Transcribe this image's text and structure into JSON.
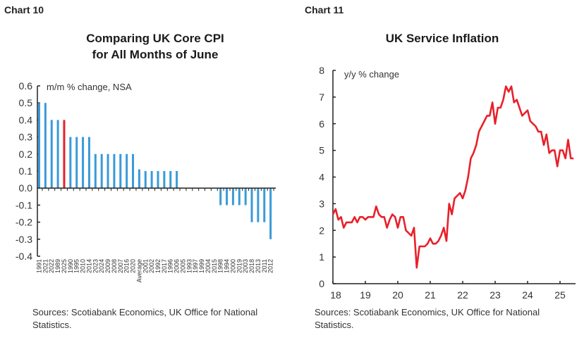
{
  "charts_header": [
    "Chart 10",
    "Chart 11"
  ],
  "chart_data": [
    {
      "type": "bar",
      "label": "Chart 10",
      "title": "Comparing UK Core CPI for All Months of June",
      "title_lines": [
        "Comparing UK Core CPI",
        "for All Months of June"
      ],
      "ylabel": "m/m % change, NSA",
      "ylim": [
        -0.4,
        0.6
      ],
      "yticks": [
        "0.6",
        "0.5",
        "0.4",
        "0.3",
        "0.2",
        "0.1",
        "0.0",
        "-0.1",
        "-0.2",
        "-0.3",
        "-0.4"
      ],
      "categories": [
        "1991",
        "2021",
        "2022",
        "1989",
        "2025",
        "1990",
        "1995",
        "2010",
        "2014",
        "2023",
        "2024",
        "2009",
        "2008",
        "2007",
        "2016",
        "2020",
        "Average",
        "2001",
        "2002",
        "1992",
        "2017",
        "1996",
        "2006",
        "2005",
        "1993",
        "1997",
        "1999",
        "2004",
        "2015",
        "1998",
        "1994",
        "2000",
        "2019",
        "2003",
        "2018",
        "2013",
        "2011",
        "2012"
      ],
      "values": [
        0.5,
        0.5,
        0.4,
        0.4,
        0.4,
        0.3,
        0.3,
        0.3,
        0.3,
        0.2,
        0.2,
        0.2,
        0.2,
        0.2,
        0.2,
        0.2,
        0.11,
        0.1,
        0.1,
        0.1,
        0.1,
        0.1,
        0.1,
        0,
        0,
        0,
        0,
        0,
        0,
        -0.1,
        -0.1,
        -0.1,
        -0.1,
        -0.1,
        -0.2,
        -0.2,
        -0.2,
        -0.3
      ],
      "highlight": "2025",
      "colors": {
        "bar": "#3a9ad9",
        "highlight": "#e8202a"
      },
      "source": "Sources: Scotiabank Economics, UK Office for National Statistics."
    },
    {
      "type": "line",
      "label": "Chart 11",
      "title": "UK Service Inflation",
      "ylabel": "y/y % change",
      "ylim": [
        0,
        8
      ],
      "yticks": [
        "0",
        "1",
        "2",
        "3",
        "4",
        "5",
        "6",
        "7",
        "8"
      ],
      "xticks": [
        "18",
        "19",
        "20",
        "21",
        "22",
        "23",
        "24",
        "25"
      ],
      "x_start": "2018-01",
      "frequency": "monthly",
      "values": [
        2.6,
        2.8,
        2.4,
        2.5,
        2.1,
        2.3,
        2.3,
        2.3,
        2.5,
        2.3,
        2.5,
        2.5,
        2.4,
        2.5,
        2.5,
        2.5,
        2.9,
        2.6,
        2.5,
        2.5,
        2.1,
        2.4,
        2.6,
        2.5,
        2.1,
        2.5,
        2.5,
        2.0,
        1.9,
        1.8,
        2.1,
        0.6,
        1.4,
        1.4,
        1.4,
        1.5,
        1.7,
        1.5,
        1.5,
        1.6,
        1.8,
        2.1,
        1.6,
        3.0,
        2.6,
        3.2,
        3.3,
        3.4,
        3.2,
        3.5,
        4.0,
        4.7,
        4.9,
        5.2,
        5.7,
        5.9,
        6.1,
        6.3,
        6.3,
        6.8,
        6.0,
        6.6,
        6.6,
        6.9,
        7.4,
        7.2,
        7.4,
        6.8,
        6.9,
        6.6,
        6.3,
        6.4,
        6.5,
        6.1,
        6.0,
        5.9,
        5.7,
        5.7,
        5.2,
        5.6,
        4.9,
        5.0,
        5.0,
        4.4,
        5.0,
        5.0,
        4.7,
        5.4,
        4.7,
        4.7
      ],
      "colors": {
        "line": "#e8202a"
      },
      "source": "Sources: Scotiabank Economics, UK Office for National Statistics."
    }
  ]
}
